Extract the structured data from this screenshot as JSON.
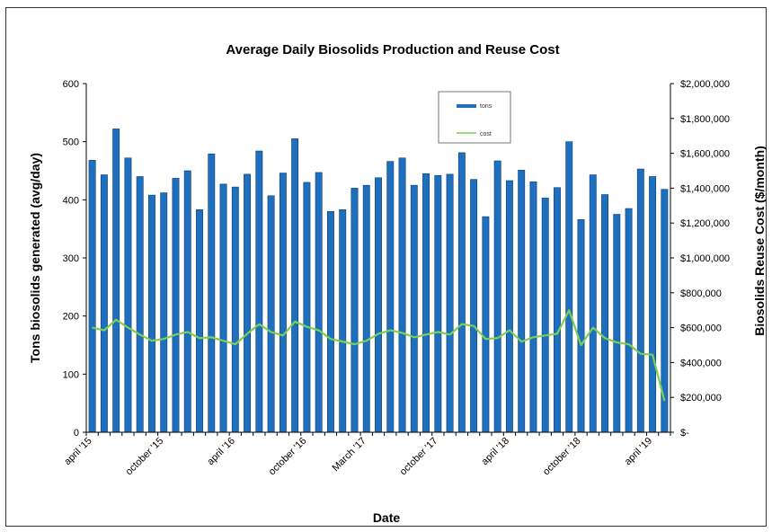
{
  "chart_data": {
    "type": "bar",
    "title": "Average Daily Biosolids Production and Reuse Cost",
    "xlabel": "Date",
    "ylabel": "Tons biosolids generated (avg/day)",
    "y2label": "Biosolids Reuse Cost ($/month)",
    "ylim": [
      0,
      600
    ],
    "y2lim": [
      0,
      2000000
    ],
    "yticks": [
      "0",
      "100",
      "200",
      "300",
      "400",
      "500",
      "600"
    ],
    "y2ticks": [
      "$-",
      "$200,000",
      "$400,000",
      "$600,000",
      "$800,000",
      "$1,000,000",
      "$1,200,000",
      "$1,400,000",
      "$1,600,000",
      "$1,800,000",
      "$2,000,000"
    ],
    "xtick_labels": [
      {
        "index": 0,
        "label": "april '15"
      },
      {
        "index": 6,
        "label": "october '15"
      },
      {
        "index": 12,
        "label": "april '16"
      },
      {
        "index": 18,
        "label": "october '16"
      },
      {
        "index": 23,
        "label": "March '17"
      },
      {
        "index": 29,
        "label": "october '17"
      },
      {
        "index": 35,
        "label": "april '18"
      },
      {
        "index": 41,
        "label": "october '18"
      },
      {
        "index": 47,
        "label": "april '19"
      }
    ],
    "grid": false,
    "legend_position": "top-center",
    "series": [
      {
        "name": "tons",
        "type": "bar",
        "axis": "left",
        "color": "#1f6fbf",
        "values": [
          468,
          443,
          522,
          472,
          440,
          408,
          412,
          437,
          450,
          383,
          479,
          427,
          422,
          444,
          484,
          407,
          446,
          505,
          430,
          447,
          380,
          383,
          420,
          425,
          438,
          466,
          472,
          425,
          445,
          442,
          444,
          481,
          435,
          371,
          467,
          433,
          451,
          431,
          403,
          421,
          500,
          366,
          443,
          409,
          375,
          385,
          453,
          440,
          418
        ]
      },
      {
        "name": "cost",
        "type": "line",
        "axis": "right",
        "color": "#7ccf52",
        "values": [
          600000,
          585000,
          645000,
          600000,
          560000,
          525000,
          535000,
          560000,
          575000,
          540000,
          545000,
          525000,
          505000,
          565000,
          620000,
          575000,
          555000,
          635000,
          605000,
          585000,
          535000,
          520000,
          505000,
          525000,
          565000,
          585000,
          570000,
          545000,
          560000,
          575000,
          560000,
          620000,
          610000,
          535000,
          540000,
          585000,
          520000,
          545000,
          555000,
          565000,
          700000,
          500000,
          600000,
          540000,
          515000,
          505000,
          450000,
          445000,
          180000
        ]
      }
    ]
  }
}
